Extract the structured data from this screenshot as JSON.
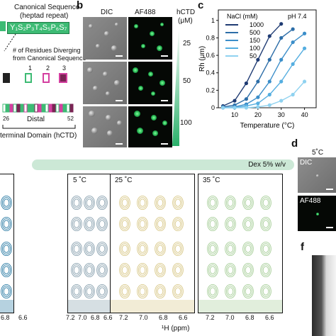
{
  "panel_a": {
    "canonical_title": "Canonical Sequence",
    "canonical_subtitle": "(heptad repeat)",
    "heptad": "Y₁S₂P₃T₄S₅P₆S₇",
    "diverging_label_1": "# of Residues Diverging",
    "diverging_label_2": "from Canonical Sequence",
    "counts": [
      "1",
      "2",
      "3"
    ],
    "distal_label": "Distal",
    "pos_start": "26",
    "pos_end": "52",
    "domain_label": "terminal Domain (hCTD)",
    "colors": {
      "heptad_fill": "#3dbb74",
      "c1": "#3dbb74",
      "c2": "#d43fa0",
      "c3": "#7a2454"
    }
  },
  "panel_b": {
    "letter": "b",
    "col_dic": "DIC",
    "col_af": "AF488",
    "conc_title_1": "hCTD",
    "conc_title_2": "(μM)",
    "conc_values": [
      "25",
      "50",
      "100"
    ]
  },
  "panel_c": {
    "letter": "c",
    "condition": "pH 7.4",
    "legend_title": "NaCl (mM)",
    "chart_data": {
      "type": "scatter",
      "xlabel": "Temperature (°C)",
      "ylabel": "Rh (μm)",
      "xlim": [
        3,
        45
      ],
      "ylim": [
        0,
        1.12
      ],
      "xticks": [
        10,
        20,
        30,
        40
      ],
      "yticks": [
        0,
        0.2,
        0.4,
        0.6,
        0.8,
        1.0
      ],
      "ytick_labels": [
        "0",
        "0.2",
        "0.4",
        "0.6",
        "0.8",
        "1"
      ],
      "legend_placement": "top-left",
      "series": [
        {
          "name": "1000",
          "color": "#1f3b73",
          "x": [
            5,
            10,
            15,
            20,
            25,
            30
          ],
          "y": [
            0.02,
            0.08,
            0.28,
            0.55,
            0.82,
            0.96
          ]
        },
        {
          "name": "500",
          "color": "#2d6ea8",
          "x": [
            5,
            10,
            15,
            20,
            25,
            30,
            35
          ],
          "y": [
            0.01,
            0.03,
            0.1,
            0.3,
            0.55,
            0.8,
            0.9
          ]
        },
        {
          "name": "150",
          "color": "#3b8ec9",
          "x": [
            5,
            10,
            15,
            20,
            25,
            30,
            35,
            40
          ],
          "y": [
            0.0,
            0.01,
            0.04,
            0.12,
            0.3,
            0.55,
            0.75,
            0.85
          ]
        },
        {
          "name": "100",
          "color": "#55aee0",
          "x": [
            5,
            10,
            15,
            20,
            25,
            30,
            35,
            40
          ],
          "y": [
            0.0,
            0.0,
            0.02,
            0.05,
            0.15,
            0.3,
            0.5,
            0.68
          ]
        },
        {
          "name": "50",
          "color": "#8fd2f0",
          "x": [
            5,
            10,
            15,
            20,
            25,
            30,
            35,
            40
          ],
          "y": [
            0.0,
            0.0,
            0.0,
            0.01,
            0.03,
            0.08,
            0.15,
            0.3
          ]
        }
      ]
    }
  },
  "panel_d": {
    "letter": "d",
    "temp": "5˚C",
    "dic": "DIC",
    "af": "AF488"
  },
  "panel_f": {
    "letter": "f"
  },
  "banner": {
    "text": "Dex 5% w/v"
  },
  "nmr": {
    "temps": [
      "5 ˚C",
      "25 ˚C",
      "35 ˚C"
    ],
    "xlabel": "¹H (ppm)",
    "tick_labels": [
      "7.2",
      "7.0",
      "6.8",
      "6.6"
    ],
    "left_ticks": [
      "6.8",
      "6.6"
    ],
    "colors": {
      "t5": "#8aa2b0",
      "t25": "#d9c98a",
      "t35": "#a8cf9a",
      "left": "#2f7ea6"
    }
  }
}
